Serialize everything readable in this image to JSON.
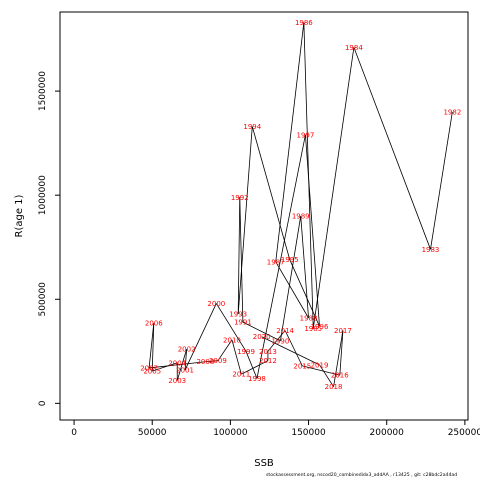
{
  "footer_text": "stockassessment.org, nscod20_combinedidx3_addAA , r13425 , git: c28bdc2a44ad",
  "chart_data": {
    "type": "line",
    "title": "",
    "xlabel": "SSB",
    "ylabel": "R(age 1)",
    "xlim": [
      -9000,
      252000
    ],
    "ylim": [
      -80000,
      1880000
    ],
    "grid": false,
    "line_color": "#000000",
    "label_color": "#ff0000",
    "x_ticks": [
      {
        "value": 0,
        "label": "0"
      },
      {
        "value": 50000,
        "label": "50000"
      },
      {
        "value": 100000,
        "label": "100000"
      },
      {
        "value": 150000,
        "label": "150000"
      },
      {
        "value": 200000,
        "label": "200000"
      },
      {
        "value": 250000,
        "label": "250000"
      }
    ],
    "y_ticks": [
      {
        "value": 0,
        "label": "0"
      },
      {
        "value": 500000,
        "label": "500000"
      },
      {
        "value": 1000000,
        "label": "1000000"
      },
      {
        "value": 1500000,
        "label": "1500000"
      }
    ],
    "points": [
      {
        "year": "1982",
        "label": "1982",
        "ssb": 242000,
        "rec": 1400000
      },
      {
        "year": "1983",
        "label": "1983",
        "ssb": 228000,
        "rec": 740000
      },
      {
        "year": "1984",
        "label": "1984",
        "ssb": 179000,
        "rec": 1710000
      },
      {
        "year": "1985",
        "label": "1985",
        "ssb": 153000,
        "rec": 360000
      },
      {
        "year": "1986",
        "label": "1986",
        "ssb": 147000,
        "rec": 1830000
      },
      {
        "year": "1987",
        "label": "1987",
        "ssb": 129000,
        "rec": 680000
      },
      {
        "year": "1988",
        "label": "1988",
        "ssb": 150000,
        "rec": 410000
      },
      {
        "year": "1989",
        "label": "1989",
        "ssb": 145000,
        "rec": 900000
      },
      {
        "year": "1990",
        "label": "1990",
        "ssb": 132000,
        "rec": 300000
      },
      {
        "year": "1991",
        "label": "1991",
        "ssb": 108000,
        "rec": 390000
      },
      {
        "year": "1992",
        "label": "1992",
        "ssb": 106000,
        "rec": 990000
      },
      {
        "year": "1993",
        "label": "1993",
        "ssb": 105000,
        "rec": 430000
      },
      {
        "year": "1994",
        "label": "1994",
        "ssb": 114000,
        "rec": 1330000
      },
      {
        "year": "1995",
        "label": "1995",
        "ssb": 138000,
        "rec": 690000
      },
      {
        "year": "1996",
        "label": "1996",
        "ssb": 157000,
        "rec": 370000
      },
      {
        "year": "1997",
        "label": "1997",
        "ssb": 148000,
        "rec": 1290000
      },
      {
        "year": "1998",
        "label": "1998",
        "ssb": 117000,
        "rec": 120000
      },
      {
        "year": "1999",
        "label": "1999",
        "ssb": 110000,
        "rec": 250000
      },
      {
        "year": "2000",
        "label": "2000",
        "ssb": 91000,
        "rec": 480000
      },
      {
        "year": "2001",
        "label": "2001",
        "ssb": 71000,
        "rec": 160000
      },
      {
        "year": "2002",
        "label": "2002",
        "ssb": 72000,
        "rec": 260000
      },
      {
        "year": "2003",
        "label": "2003",
        "ssb": 66000,
        "rec": 110000
      },
      {
        "year": "2004",
        "label": "2004",
        "ssb": 66000,
        "rec": 195000
      },
      {
        "year": "2005",
        "label": "2005",
        "ssb": 50000,
        "rec": 155000
      },
      {
        "year": "2006",
        "label": "2006",
        "ssb": 51000,
        "rec": 385000
      },
      {
        "year": "2007",
        "label": "2007",
        "ssb": 48000,
        "rec": 170000
      },
      {
        "year": "2008",
        "label": "2008",
        "ssb": 84000,
        "rec": 200000
      },
      {
        "year": "2009",
        "label": "2009",
        "ssb": 92000,
        "rec": 205000
      },
      {
        "year": "2010",
        "label": "2010",
        "ssb": 101000,
        "rec": 305000
      },
      {
        "year": "2011",
        "label": "2011",
        "ssb": 107000,
        "rec": 140000
      },
      {
        "year": "2012",
        "label": "2012",
        "ssb": 124000,
        "rec": 205000
      },
      {
        "year": "2013",
        "label": "2013",
        "ssb": 124000,
        "rec": 250000
      },
      {
        "year": "2014",
        "label": "2014",
        "ssb": 135000,
        "rec": 350000
      },
      {
        "year": "2015",
        "label": "2015",
        "ssb": 146000,
        "rec": 180000
      },
      {
        "year": "2016",
        "label": "2016",
        "ssb": 170000,
        "rec": 135000
      },
      {
        "year": "2017",
        "label": "2017",
        "ssb": 172000,
        "rec": 350000
      },
      {
        "year": "2018",
        "label": "2018",
        "ssb": 166000,
        "rec": 80000
      },
      {
        "year": "2019",
        "label": "2019",
        "ssb": 157000,
        "rec": 185000
      },
      {
        "year": "2020",
        "label": "2020",
        "ssb": 120000,
        "rec": 320000
      }
    ]
  }
}
